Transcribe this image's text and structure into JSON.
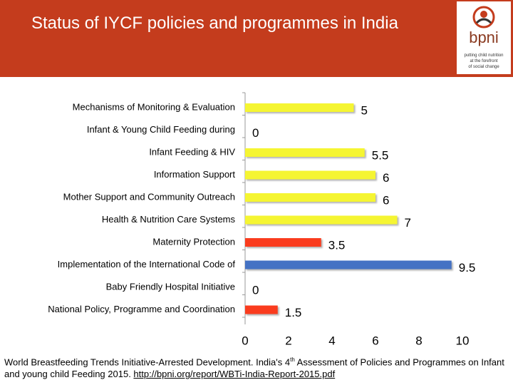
{
  "header": {
    "title": "Status of IYCF policies and programmes in India",
    "logo": {
      "name": "bpni",
      "tagline": [
        "putting child nutrition",
        "at the forefront",
        "of social change"
      ]
    }
  },
  "chart_data": {
    "type": "hbar",
    "categories": [
      "Mechanisms of Monitoring & Evaluation",
      "Infant & Young Child  Feeding during",
      "Infant Feeding & HIV",
      "Information Support",
      "Mother Support and Community Outreach",
      "Health & Nutrition Care Systems",
      "Maternity Protection",
      "Implementation of the International Code of",
      "Baby Friendly Hospital Initiative",
      "National Policy, Programme and Coordination"
    ],
    "values": [
      5,
      0,
      5.5,
      6,
      6,
      7,
      3.5,
      9.5,
      0,
      1.5
    ],
    "colors": [
      "#f5f532",
      "#f5f532",
      "#f5f532",
      "#f5f532",
      "#f5f532",
      "#f5f532",
      "#fa3c1e",
      "#4472c4",
      "#f5f532",
      "#fa3c1e"
    ],
    "xlim": [
      0,
      10
    ],
    "xticks": [
      0,
      2,
      4,
      6,
      8,
      10
    ],
    "grid": false
  },
  "footer": {
    "text_before": "World Breastfeeding Trends Initiative-Arrested Development. India's 4",
    "superscript": "th",
    "text_after": " Assessment of Policies and Programmes on Infant and young child Feeding 2015. ",
    "link": "http://bpni.org/report/WBTi-India-Report-2015.pdf"
  }
}
